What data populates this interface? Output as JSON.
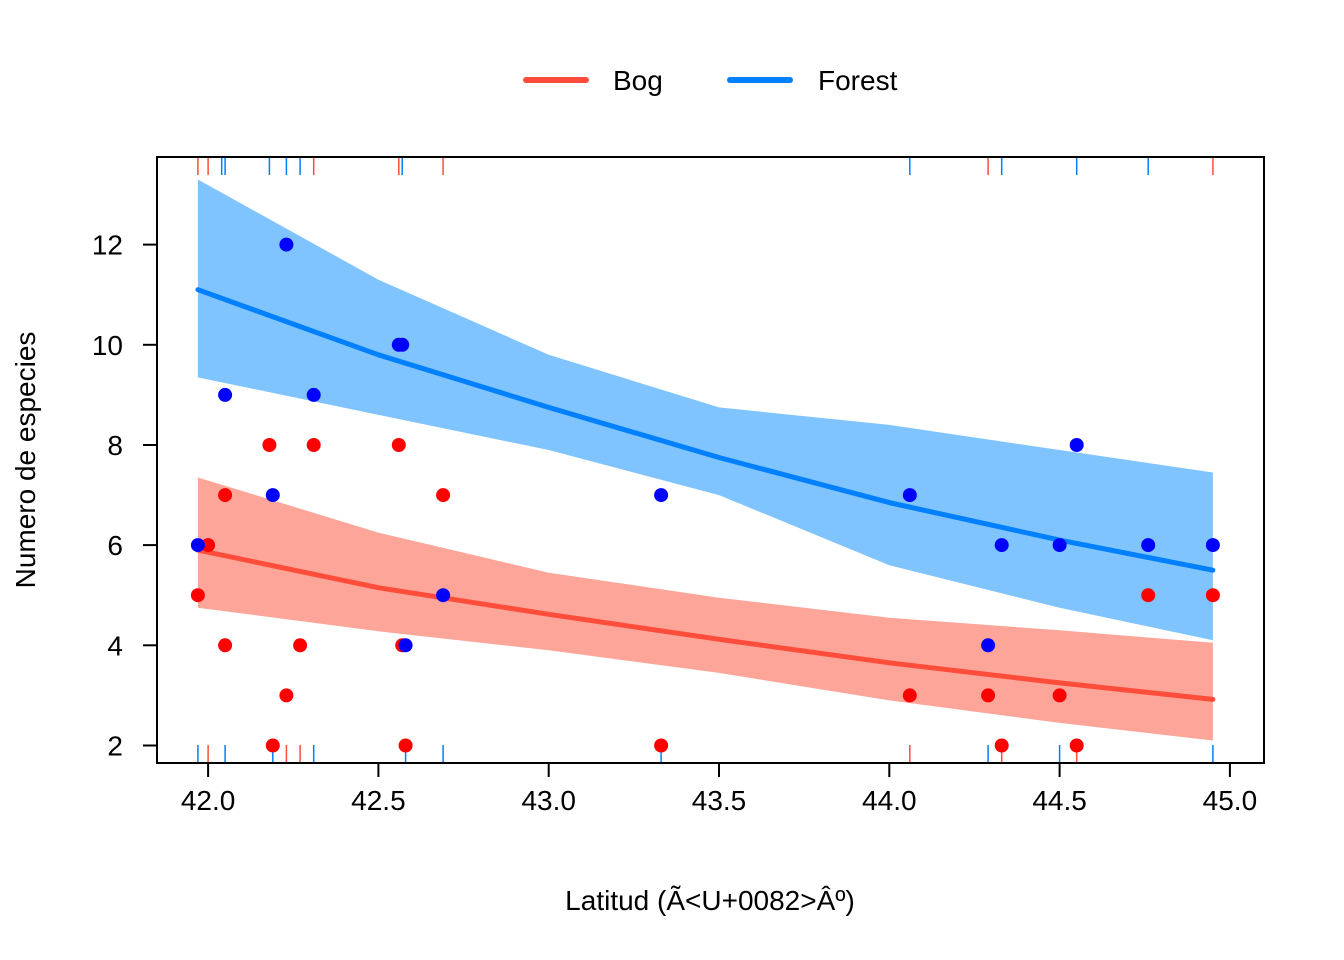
{
  "chart_data": {
    "type": "scatter",
    "xlabel": "Latitud (Ã<U+0082>Âº)",
    "ylabel": "Numero de especies",
    "xlim": [
      41.85,
      45.1
    ],
    "ylim": [
      1.65,
      13.75
    ],
    "x_ticks": [
      42.0,
      42.5,
      43.0,
      43.5,
      44.0,
      44.5,
      45.0
    ],
    "x_tick_labels": [
      "42.0",
      "42.5",
      "43.0",
      "43.5",
      "44.0",
      "44.5",
      "45.0"
    ],
    "y_ticks": [
      2,
      4,
      6,
      8,
      10,
      12
    ],
    "y_tick_labels": [
      "2",
      "4",
      "6",
      "8",
      "10",
      "12"
    ],
    "grid": false,
    "legend_position": "top",
    "series": [
      {
        "name": "Bog",
        "line_color": "#FF4D3C",
        "band_color": "#FDA599",
        "point_color": "#FF0000",
        "points": [
          {
            "x": 41.97,
            "y": 5
          },
          {
            "x": 42.0,
            "y": 6
          },
          {
            "x": 42.05,
            "y": 7
          },
          {
            "x": 42.05,
            "y": 4
          },
          {
            "x": 42.18,
            "y": 8
          },
          {
            "x": 42.19,
            "y": 2
          },
          {
            "x": 42.23,
            "y": 3
          },
          {
            "x": 42.27,
            "y": 4
          },
          {
            "x": 42.31,
            "y": 8
          },
          {
            "x": 42.56,
            "y": 8
          },
          {
            "x": 42.57,
            "y": 4
          },
          {
            "x": 42.58,
            "y": 2
          },
          {
            "x": 42.69,
            "y": 7
          },
          {
            "x": 43.33,
            "y": 2
          },
          {
            "x": 44.06,
            "y": 3
          },
          {
            "x": 44.29,
            "y": 3
          },
          {
            "x": 44.33,
            "y": 2
          },
          {
            "x": 44.5,
            "y": 3
          },
          {
            "x": 44.55,
            "y": 2
          },
          {
            "x": 44.76,
            "y": 5
          },
          {
            "x": 44.95,
            "y": 5
          }
        ],
        "fit": [
          {
            "x": 41.97,
            "y": 5.9,
            "lo": 4.75,
            "hi": 7.35
          },
          {
            "x": 42.5,
            "y": 5.15,
            "lo": 4.28,
            "hi": 6.25
          },
          {
            "x": 43.0,
            "y": 4.62,
            "lo": 3.9,
            "hi": 5.45
          },
          {
            "x": 43.5,
            "y": 4.12,
            "lo": 3.45,
            "hi": 4.95
          },
          {
            "x": 44.0,
            "y": 3.65,
            "lo": 2.9,
            "hi": 4.55
          },
          {
            "x": 44.5,
            "y": 3.25,
            "lo": 2.45,
            "hi": 4.3
          },
          {
            "x": 44.95,
            "y": 2.92,
            "lo": 2.1,
            "hi": 4.05
          }
        ]
      },
      {
        "name": "Forest",
        "line_color": "#0080FF",
        "band_color": "#80C4FF",
        "point_color": "#0000FF",
        "points": [
          {
            "x": 41.97,
            "y": 6
          },
          {
            "x": 42.05,
            "y": 9
          },
          {
            "x": 42.19,
            "y": 7
          },
          {
            "x": 42.23,
            "y": 12
          },
          {
            "x": 42.31,
            "y": 9
          },
          {
            "x": 42.56,
            "y": 10
          },
          {
            "x": 42.57,
            "y": 10
          },
          {
            "x": 42.58,
            "y": 4
          },
          {
            "x": 42.69,
            "y": 5
          },
          {
            "x": 43.33,
            "y": 7
          },
          {
            "x": 44.06,
            "y": 7
          },
          {
            "x": 44.29,
            "y": 4
          },
          {
            "x": 44.33,
            "y": 6
          },
          {
            "x": 44.5,
            "y": 6
          },
          {
            "x": 44.55,
            "y": 8
          },
          {
            "x": 44.76,
            "y": 6
          },
          {
            "x": 44.95,
            "y": 6
          }
        ],
        "fit": [
          {
            "x": 41.97,
            "y": 11.1,
            "lo": 9.35,
            "hi": 13.3
          },
          {
            "x": 42.5,
            "y": 9.8,
            "lo": 8.6,
            "hi": 11.3
          },
          {
            "x": 43.0,
            "y": 8.75,
            "lo": 7.9,
            "hi": 9.8
          },
          {
            "x": 43.5,
            "y": 7.75,
            "lo": 7.0,
            "hi": 8.75
          },
          {
            "x": 44.0,
            "y": 6.85,
            "lo": 5.6,
            "hi": 8.4
          },
          {
            "x": 44.5,
            "y": 6.1,
            "lo": 4.75,
            "hi": 7.9
          },
          {
            "x": 44.95,
            "y": 5.5,
            "lo": 4.1,
            "hi": 7.45
          }
        ]
      }
    ],
    "rug": {
      "bog_top": [
        41.97,
        42.0,
        42.31,
        42.56,
        42.69,
        44.29,
        44.95
      ],
      "forest_top": [
        42.04,
        42.05,
        42.18,
        42.23,
        42.27,
        42.57,
        44.06,
        44.33,
        44.55,
        44.76
      ],
      "forest_bottom": [
        41.97,
        42.05,
        42.19,
        42.31,
        42.58,
        42.69,
        43.33,
        44.29,
        44.5,
        44.95
      ],
      "bog_bottom": [
        42.0,
        42.23,
        42.27,
        44.06,
        44.33,
        44.55
      ]
    }
  }
}
